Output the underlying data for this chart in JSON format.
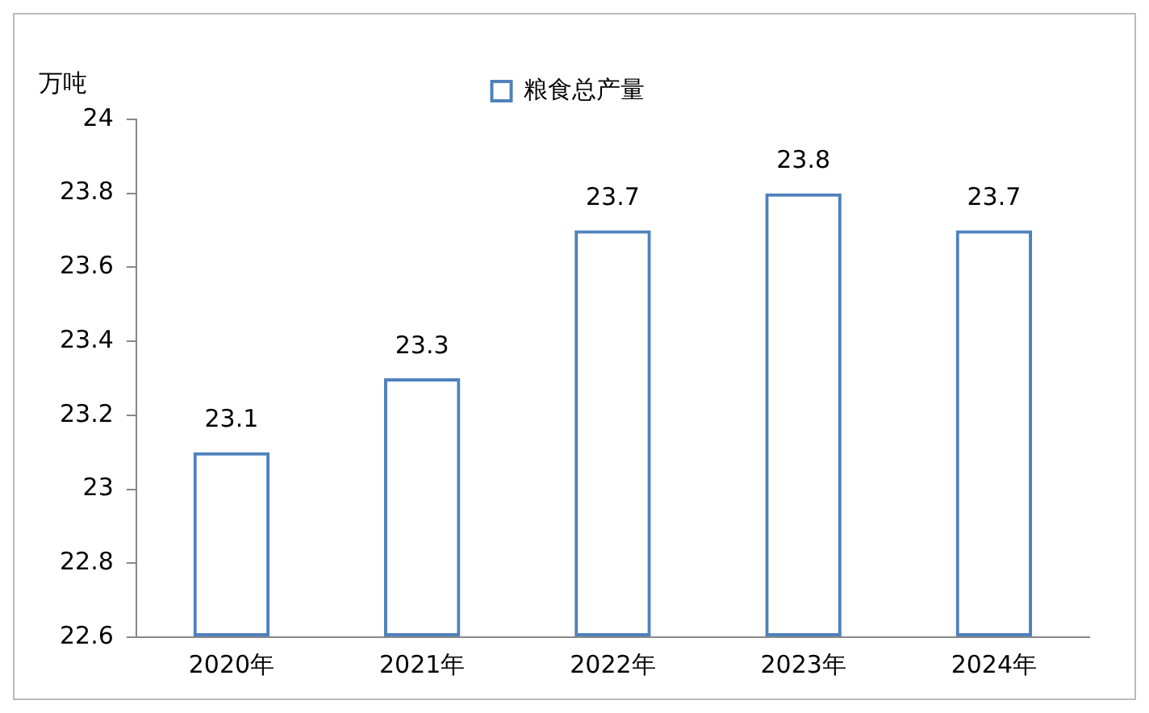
{
  "chart_data": {
    "type": "bar",
    "ylabel": "万吨",
    "categories": [
      "2020年",
      "2021年",
      "2022年",
      "2023年",
      "2024年"
    ],
    "series": [
      {
        "name": "粮食总产量",
        "color": "#4f81bd",
        "values": [
          23.1,
          23.3,
          23.7,
          23.8,
          23.7
        ]
      }
    ],
    "ylim": [
      22.6,
      24
    ],
    "yticks": [
      22.6,
      22.8,
      23,
      23.2,
      23.4,
      23.6,
      23.8,
      24
    ],
    "grid": false,
    "legend": "top",
    "data_labels": true
  }
}
